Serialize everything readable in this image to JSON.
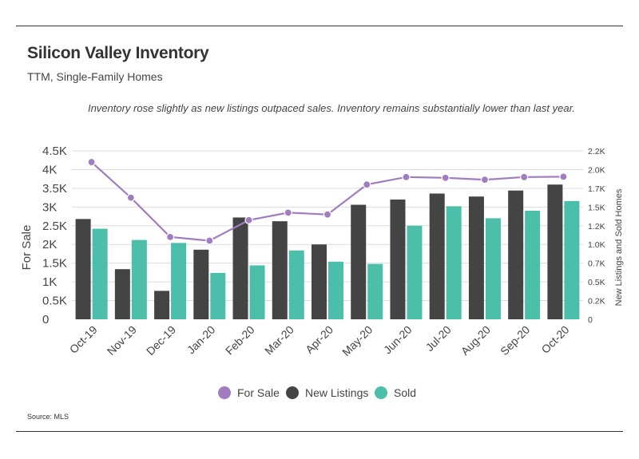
{
  "header": {
    "title": "Silicon Valley Inventory",
    "subtitle": "TTM, Single-Family Homes"
  },
  "note": "Inventory rose slightly as new listings outpaced sales. Inventory remains substantially lower than last year.",
  "source": "Source:  MLS",
  "colors": {
    "for_sale": "#a07cc0",
    "new_listings": "#444444",
    "sold": "#4bbfaa",
    "grid": "#dddddd"
  },
  "chart_data": {
    "type": "bar",
    "categories": [
      "Oct-19",
      "Nov-19",
      "Dec-19",
      "Jan-20",
      "Feb-20",
      "Mar-20",
      "Apr-20",
      "May-20",
      "Jun-20",
      "Jul-20",
      "Aug-20",
      "Sep-20",
      "Oct-20"
    ],
    "series": [
      {
        "name": "For Sale",
        "kind": "line",
        "axis": "left",
        "values": [
          4200,
          3250,
          2200,
          2100,
          2650,
          2850,
          2800,
          3600,
          3800,
          3780,
          3730,
          3800,
          3810
        ]
      },
      {
        "name": "New Listings",
        "kind": "bar",
        "axis": "right",
        "values": [
          1340,
          670,
          380,
          930,
          1360,
          1310,
          1000,
          1530,
          1600,
          1680,
          1640,
          1720,
          1800
        ]
      },
      {
        "name": "Sold",
        "kind": "bar",
        "axis": "right",
        "values": [
          1210,
          1060,
          1020,
          620,
          720,
          920,
          770,
          740,
          1250,
          1510,
          1350,
          1450,
          1580
        ]
      }
    ],
    "ylabel": "For Sale",
    "y2label": "New Listings and Sold Homes",
    "y_ticks": [
      "0",
      "0.5K",
      "1K",
      "1.5K",
      "2K",
      "2.5K",
      "3K",
      "3.5K",
      "4K",
      "4.5K"
    ],
    "y2_ticks": [
      "0",
      "0.2K",
      "0.5K",
      "0.7K",
      "1.0K",
      "1.2K",
      "1.5K",
      "1.7K",
      "2.0K",
      "2.2K"
    ],
    "ylim": [
      0,
      4500
    ],
    "y2lim": [
      0,
      2250
    ],
    "legend": [
      "For Sale",
      "New Listings",
      "Sold"
    ],
    "legend_position": "bottom",
    "grid": true
  }
}
